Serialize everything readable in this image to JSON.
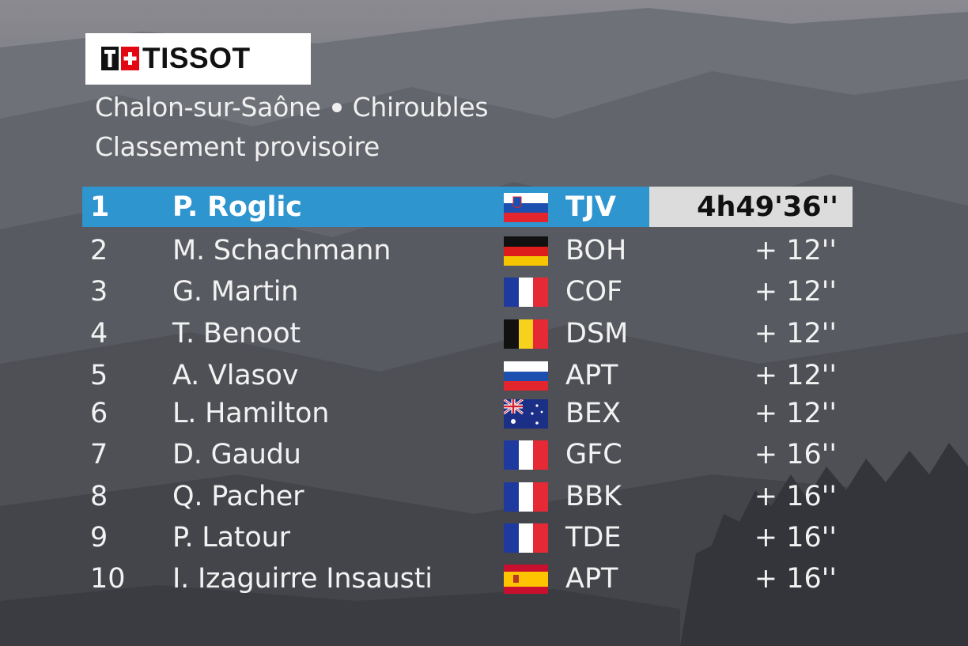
{
  "brand": {
    "logo_text": "TISSOT"
  },
  "header": {
    "stage_start": "Chalon-sur-Saône",
    "stage_end": "Chiroubles",
    "classification": "Classement provisoire"
  },
  "colors": {
    "leader_row": "#2e95cf",
    "leader_time_box": "#dcdcdc",
    "text": "#f2f2f2"
  },
  "standings": [
    {
      "pos": "1",
      "name": "P. Roglic",
      "flag": "slovenia-flag",
      "team": "TJV",
      "time": "4h49'36''"
    },
    {
      "pos": "2",
      "name": "M. Schachmann",
      "flag": "germany-flag",
      "team": "BOH",
      "time": "+ 12''"
    },
    {
      "pos": "3",
      "name": "G. Martin",
      "flag": "france-flag",
      "team": "COF",
      "time": "+ 12''"
    },
    {
      "pos": "4",
      "name": "T. Benoot",
      "flag": "belgium-flag",
      "team": "DSM",
      "time": "+ 12''"
    },
    {
      "pos": "5",
      "name": "A. Vlasov",
      "flag": "russia-flag",
      "team": "APT",
      "time": "+ 12''"
    },
    {
      "pos": "6",
      "name": "L. Hamilton",
      "flag": "australia-flag",
      "team": "BEX",
      "time": "+ 12''"
    },
    {
      "pos": "7",
      "name": "D. Gaudu",
      "flag": "france-flag",
      "team": "GFC",
      "time": "+ 16''"
    },
    {
      "pos": "8",
      "name": "Q. Pacher",
      "flag": "france-flag",
      "team": "BBK",
      "time": "+ 16''"
    },
    {
      "pos": "9",
      "name": "P. Latour",
      "flag": "france-flag",
      "team": "TDE",
      "time": "+ 16''"
    },
    {
      "pos": "10",
      "name": "I. Izaguirre Insausti",
      "flag": "spain-flag",
      "team": "APT",
      "time": "+ 16''"
    }
  ]
}
